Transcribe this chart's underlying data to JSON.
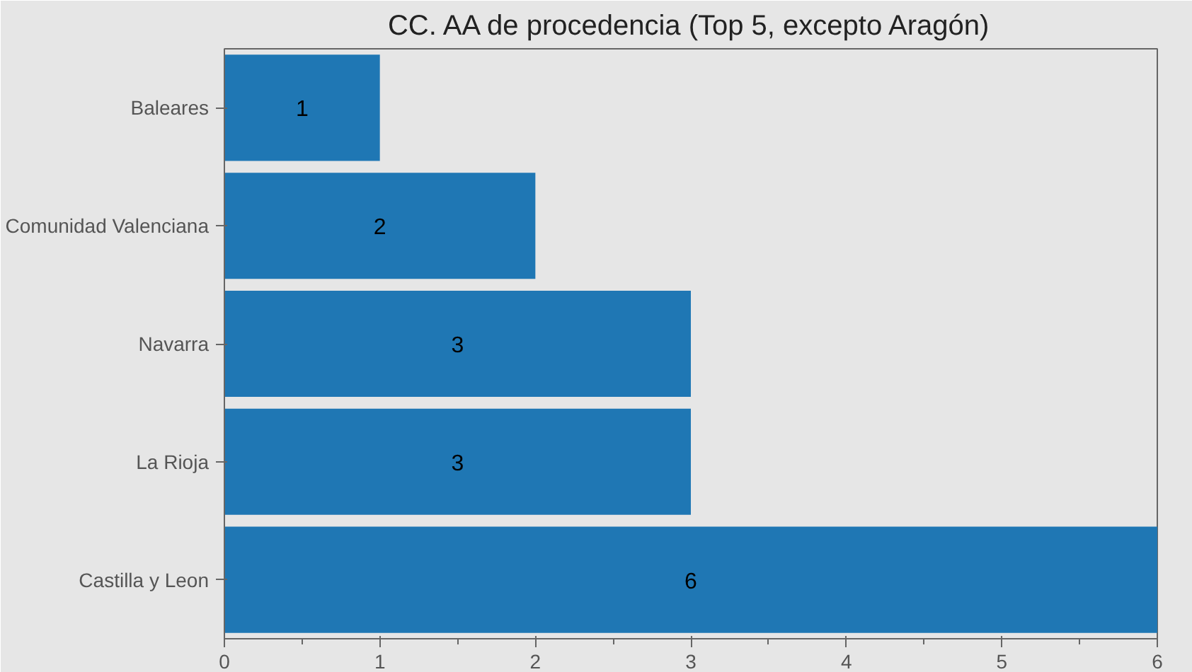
{
  "chart_data": {
    "type": "bar",
    "orientation": "horizontal",
    "title": "CC. AA de procedencia (Top 5, excepto Aragón)",
    "categories": [
      "Baleares",
      "Comunidad Valenciana",
      "Navarra",
      "La Rioja",
      "Castilla y Leon"
    ],
    "values": [
      1,
      2,
      3,
      3,
      6
    ],
    "color": "#1f77b4",
    "xlim": [
      0,
      6
    ],
    "xticks": [
      0,
      1,
      2,
      3,
      4,
      5,
      6
    ],
    "grid": false,
    "data_labels": true
  }
}
